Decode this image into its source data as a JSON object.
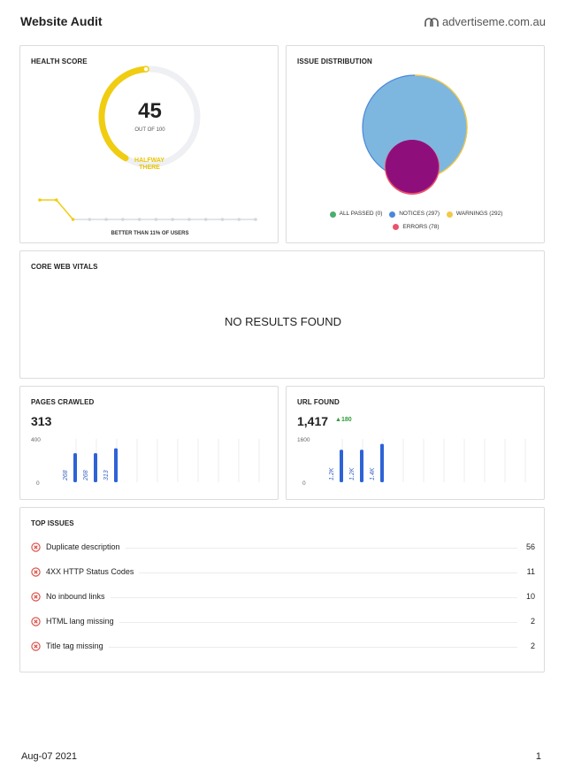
{
  "header": {
    "title": "Website Audit",
    "brand": "advertiseme.com.au"
  },
  "health": {
    "title": "HEALTH SCORE",
    "score": "45",
    "score_value": 45,
    "score_max": 100,
    "out_of": "OUT OF 100",
    "status": "HALFWAY THERE",
    "better_than": "BETTER THAN 11% OF USERS",
    "trend": [
      100,
      100,
      45,
      45,
      45,
      45,
      45,
      45,
      45,
      45,
      45,
      45,
      45,
      45
    ],
    "colors": {
      "accent": "#f0cd11",
      "track": "#eef0f3"
    }
  },
  "distribution": {
    "title": "ISSUE DISTRIBUTION",
    "legend": [
      {
        "label": "ALL PASSED (0)",
        "color": "#4cae6e",
        "value": 0
      },
      {
        "label": "NOTICES (297)",
        "color": "#4a88d8",
        "value": 297
      },
      {
        "label": "WARNINGS (292)",
        "color": "#f0c94a",
        "value": 292
      },
      {
        "label": "ERRORS (78)",
        "color": "#e9546b",
        "value": 78
      }
    ]
  },
  "cwv": {
    "title": "CORE WEB VITALS",
    "message": "NO RESULTS FOUND"
  },
  "pages": {
    "title": "PAGES CRAWLED",
    "value": "313",
    "chart_data": {
      "type": "bar",
      "y_ticks": [
        "400",
        "0"
      ],
      "ylim": [
        0,
        400
      ],
      "values": [
        268,
        268,
        313
      ],
      "labels": [
        "268",
        "268",
        "313"
      ],
      "slots": 10
    }
  },
  "urls": {
    "title": "URL FOUND",
    "value": "1,417",
    "delta": "180",
    "chart_data": {
      "type": "bar",
      "y_ticks": [
        "1600",
        "0"
      ],
      "ylim": [
        0,
        1600
      ],
      "values": [
        1200,
        1200,
        1417
      ],
      "labels": [
        "1.2K",
        "1.2K",
        "1.4K"
      ],
      "slots": 10
    }
  },
  "issues": {
    "title": "TOP ISSUES",
    "items": [
      {
        "label": "Duplicate description",
        "count": "56"
      },
      {
        "label": "4XX HTTP Status Codes",
        "count": "11"
      },
      {
        "label": "No inbound links",
        "count": "10"
      },
      {
        "label": "HTML lang missing",
        "count": "2"
      },
      {
        "label": "Title tag missing",
        "count": "2"
      }
    ]
  },
  "footer": {
    "date": "Aug-07 2021",
    "page": "1"
  }
}
